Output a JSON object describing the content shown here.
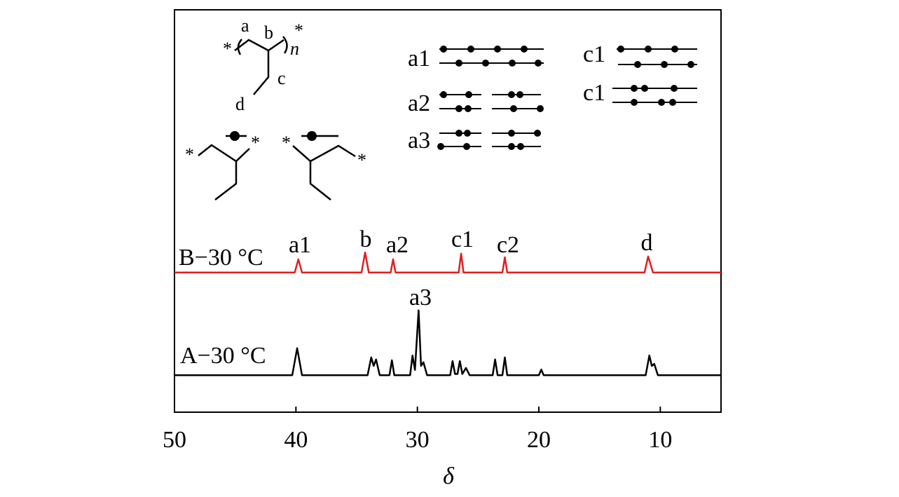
{
  "chart_data": {
    "type": "line",
    "xlabel": "δ",
    "xlim": [
      50,
      5
    ],
    "ylim": [
      0,
      100
    ],
    "xticks": [
      50,
      40,
      30,
      20,
      10
    ],
    "series": [
      {
        "name": "B−30 °C",
        "color": "#e02020",
        "x": [
          50,
          40.1,
          39.8,
          39.5,
          34.6,
          34.3,
          34.0,
          32.2,
          32.0,
          31.8,
          26.6,
          26.4,
          26.2,
          23.0,
          22.8,
          22.6,
          11.3,
          11.0,
          10.6,
          5
        ],
        "values": [
          34.7,
          34.7,
          38.0,
          34.7,
          34.7,
          39.7,
          34.7,
          34.7,
          38.0,
          34.7,
          34.7,
          39.4,
          34.7,
          34.7,
          38.5,
          34.7,
          34.7,
          38.7,
          34.7,
          34.7
        ]
      },
      {
        "name": "A−30 °C",
        "color": "#000000",
        "x": [
          50,
          40.3,
          39.9,
          39.5,
          34.1,
          33.8,
          33.6,
          33.4,
          33.1,
          32.3,
          32.1,
          31.9,
          30.6,
          30.4,
          30.2,
          29.9,
          29.7,
          29.5,
          29.2,
          27.3,
          27.1,
          26.9,
          26.7,
          26.5,
          26.3,
          26.0,
          25.7,
          23.8,
          23.6,
          23.4,
          23.0,
          22.8,
          22.6,
          20.0,
          19.8,
          19.6,
          11.2,
          10.9,
          10.7,
          10.5,
          10.2,
          5
        ],
        "values": [
          9.2,
          9.2,
          15.9,
          9.2,
          9.2,
          13.6,
          11.5,
          13.1,
          9.2,
          9.2,
          12.9,
          9.2,
          9.2,
          14.1,
          10.5,
          25.3,
          11.5,
          12.4,
          9.2,
          9.2,
          12.7,
          9.5,
          9.5,
          12.7,
          9.5,
          11.0,
          9.2,
          9.2,
          13.1,
          9.2,
          9.2,
          13.6,
          9.2,
          9.2,
          10.6,
          9.2,
          9.2,
          14.1,
          11.5,
          12.0,
          9.2,
          9.2
        ]
      }
    ],
    "annotations": [
      "a1",
      "b",
      "a2",
      "c1",
      "c2",
      "d",
      "a3"
    ]
  },
  "structure": {
    "end": "*",
    "labels": [
      "a",
      "b",
      "c",
      "d"
    ],
    "repeat": "n"
  },
  "tacticity_labels": [
    "a1",
    "a2",
    "a3",
    "c1",
    "c1"
  ]
}
